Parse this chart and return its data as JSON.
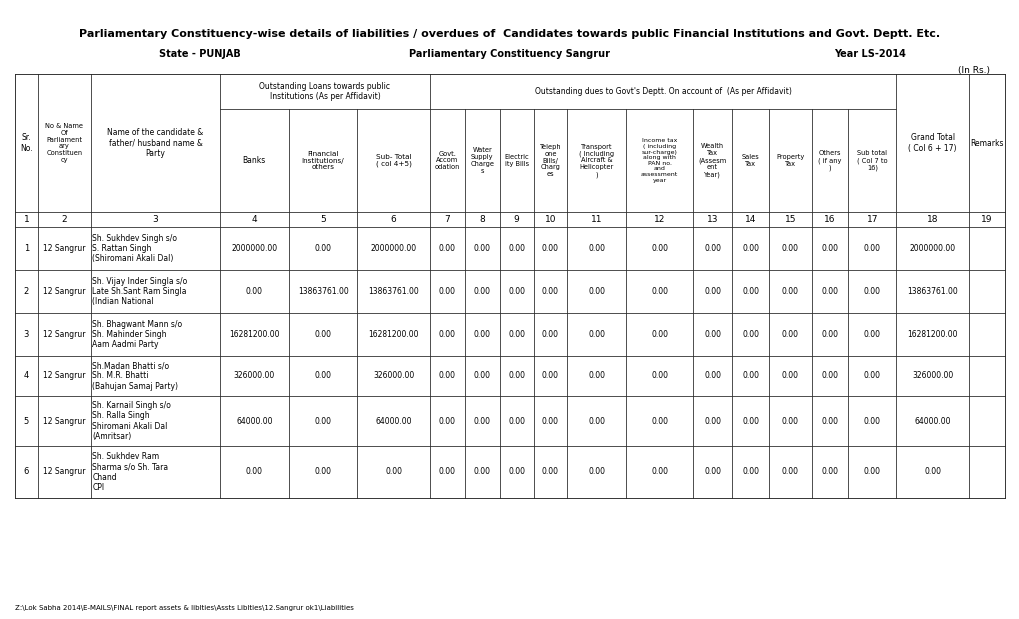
{
  "title": "Parliamentary Constituency-wise details of liabilities / overdues of  Candidates towards public Financial Institutions and Govt. Deptt. Etc.",
  "state_label": "State - PUNJAB",
  "constituency_label": "Parliamentary Constituency Sangrur",
  "year_label": "Year LS-2014",
  "in_rs_label": "(In Rs.)",
  "footer": "Z:\\Lok Sabha 2014\\E-MAILS\\FINAL report assets & liblties\\Assts Liblties\\12.Sangrur ok1\\Liabilities",
  "col_numbers": [
    "1",
    "2",
    "3",
    "4",
    "5",
    "6",
    "7",
    "8",
    "9",
    "10",
    "11",
    "12",
    "13",
    "14",
    "15",
    "16",
    "17",
    "18",
    "19"
  ],
  "data_rows": [
    {
      "sr": "1",
      "no_name": "12 Sangrur",
      "candidate": "Sh. Sukhdev Singh s/o\nS. Rattan Singh\n(Shiromani Akali Dal)",
      "banks": "2000000.00",
      "financial": "0.00",
      "sub_total": "2000000.00",
      "c7": "0.00",
      "c8": "0.00",
      "c9": "0.00",
      "c10": "0.00",
      "c11": "0.00",
      "c12": "0.00",
      "c13": "0.00",
      "c14": "0.00",
      "c15": "0.00",
      "c16": "0.00",
      "c17": "0.00",
      "grand_total": "2000000.00",
      "remarks": ""
    },
    {
      "sr": "2",
      "no_name": "12 Sangrur",
      "candidate": "Sh. Vijay Inder Singla s/o\nLate Sh.Sant Ram Singla\n(Indian National",
      "banks": "0.00",
      "financial": "13863761.00",
      "sub_total": "13863761.00",
      "c7": "0.00",
      "c8": "0.00",
      "c9": "0.00",
      "c10": "0.00",
      "c11": "0.00",
      "c12": "0.00",
      "c13": "0.00",
      "c14": "0.00",
      "c15": "0.00",
      "c16": "0.00",
      "c17": "0.00",
      "grand_total": "13863761.00",
      "remarks": ""
    },
    {
      "sr": "3",
      "no_name": "12 Sangrur",
      "candidate": "Sh. Bhagwant Mann s/o\nSh. Mahinder Singh\nAam Aadmi Party",
      "banks": "16281200.00",
      "financial": "0.00",
      "sub_total": "16281200.00",
      "c7": "0.00",
      "c8": "0.00",
      "c9": "0.00",
      "c10": "0.00",
      "c11": "0.00",
      "c12": "0.00",
      "c13": "0.00",
      "c14": "0.00",
      "c15": "0.00",
      "c16": "0.00",
      "c17": "0.00",
      "grand_total": "16281200.00",
      "remarks": ""
    },
    {
      "sr": "4",
      "no_name": "12 Sangrur",
      "candidate": "Sh.Madan Bhatti s/o\nSh. M.R. Bhatti\n(Bahujan Samaj Party)",
      "banks": "326000.00",
      "financial": "0.00",
      "sub_total": "326000.00",
      "c7": "0.00",
      "c8": "0.00",
      "c9": "0.00",
      "c10": "0.00",
      "c11": "0.00",
      "c12": "0.00",
      "c13": "0.00",
      "c14": "0.00",
      "c15": "0.00",
      "c16": "0.00",
      "c17": "0.00",
      "grand_total": "326000.00",
      "remarks": ""
    },
    {
      "sr": "5",
      "no_name": "12 Sangrur",
      "candidate": "Sh. Karnail Singh s/o\nSh. Ralla Singh\nShiromani Akali Dal\n(Amritsar)",
      "banks": "64000.00",
      "financial": "0.00",
      "sub_total": "64000.00",
      "c7": "0.00",
      "c8": "0.00",
      "c9": "0.00",
      "c10": "0.00",
      "c11": "0.00",
      "c12": "0.00",
      "c13": "0.00",
      "c14": "0.00",
      "c15": "0.00",
      "c16": "0.00",
      "c17": "0.00",
      "grand_total": "64000.00",
      "remarks": ""
    },
    {
      "sr": "6",
      "no_name": "12 Sangrur",
      "candidate": "Sh. Sukhdev Ram\nSharma s/o Sh. Tara\nChand\nCPI",
      "banks": "0.00",
      "financial": "0.00",
      "sub_total": "0.00",
      "c7": "0.00",
      "c8": "0.00",
      "c9": "0.00",
      "c10": "0.00",
      "c11": "0.00",
      "c12": "0.00",
      "c13": "0.00",
      "c14": "0.00",
      "c15": "0.00",
      "c16": "0.00",
      "c17": "0.00",
      "grand_total": "0.00",
      "remarks": ""
    }
  ],
  "bg_color": "#ffffff",
  "text_color": "#000000"
}
